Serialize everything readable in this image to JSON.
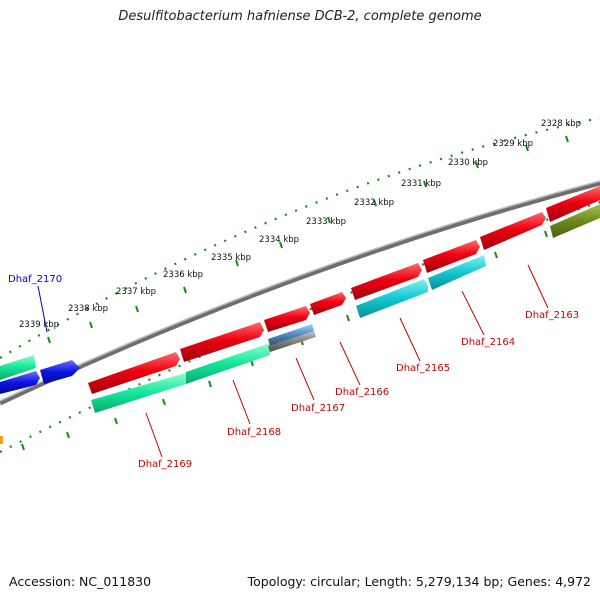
{
  "title": "Desulfitobacterium hafniense DCB-2, complete genome",
  "accession": "Accession: NC_011830",
  "summary": "Topology: circular; Length: 5,279,134 bp; Genes: 4,972",
  "kbp_labels": [
    "2328 kbp",
    "2329 kbp",
    "2330 kbp",
    "2331 kbp",
    "2332 kbp",
    "2333 kbp",
    "2334 kbp",
    "2335 kbp",
    "2336 kbp",
    "2337 kbp",
    "2338 kbp",
    "2339 kbp"
  ],
  "gene_labels": [
    "Dhaf_2163",
    "Dhaf_2164",
    "Dhaf_2165",
    "Dhaf_2166",
    "Dhaf_2167",
    "Dhaf_2168",
    "Dhaf_2169",
    "Dhaf_2170"
  ],
  "colors": {
    "forward_gene": "#e8001c",
    "reverse_gene_cyan": "#12c8d2",
    "reverse_gene_green": "#14e69a",
    "reverse_gene_olive": "#6b8a1e",
    "gene_blue": "#0a14e0",
    "backbone": "#808080",
    "ruler_dots": "#1a8a1a",
    "label_red": "#cc0000",
    "label_blue": "#0000cc"
  }
}
